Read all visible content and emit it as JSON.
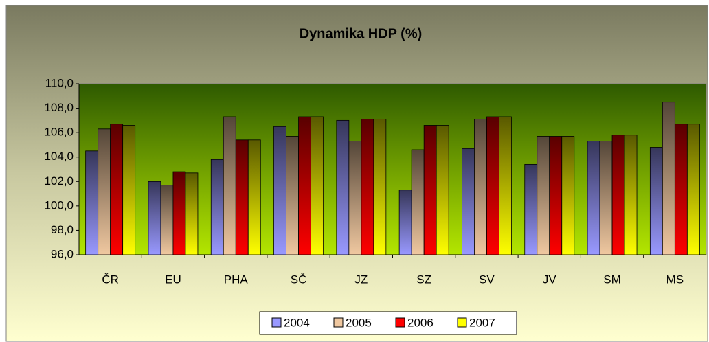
{
  "chart_data": {
    "type": "bar",
    "title": "Dynamika HDP (%)",
    "categories": [
      "ČR",
      "EU",
      "PHA",
      "SČ",
      "JZ",
      "SZ",
      "SV",
      "JV",
      "SM",
      "MS"
    ],
    "series": [
      {
        "name": "2004",
        "color": "#9999ff",
        "values": [
          104.5,
          102.0,
          103.8,
          106.5,
          107.0,
          101.3,
          104.7,
          103.4,
          105.3,
          104.8
        ]
      },
      {
        "name": "2005",
        "color": "#f0c8a0",
        "values": [
          106.3,
          101.7,
          107.3,
          105.7,
          105.3,
          104.6,
          107.1,
          105.7,
          105.3,
          108.5
        ]
      },
      {
        "name": "2006",
        "color": "#ff0000",
        "values": [
          106.7,
          102.8,
          105.4,
          107.3,
          107.1,
          106.6,
          107.3,
          105.7,
          105.8,
          106.7
        ]
      },
      {
        "name": "2007",
        "color": "#ffff00",
        "values": [
          106.6,
          102.7,
          105.4,
          107.3,
          107.1,
          106.6,
          107.3,
          105.7,
          105.8,
          106.7
        ]
      }
    ],
    "ylim": [
      96,
      110
    ],
    "yticks": [
      {
        "value": 96,
        "label": "96,0"
      },
      {
        "value": 98,
        "label": "98,0"
      },
      {
        "value": 100,
        "label": "100,0"
      },
      {
        "value": 102,
        "label": "102,0"
      },
      {
        "value": 104,
        "label": "104,0"
      },
      {
        "value": 106,
        "label": "106,0"
      },
      {
        "value": 108,
        "label": "108,0"
      },
      {
        "value": 110,
        "label": "110,0"
      }
    ],
    "grid": false,
    "legend": "bottom"
  }
}
